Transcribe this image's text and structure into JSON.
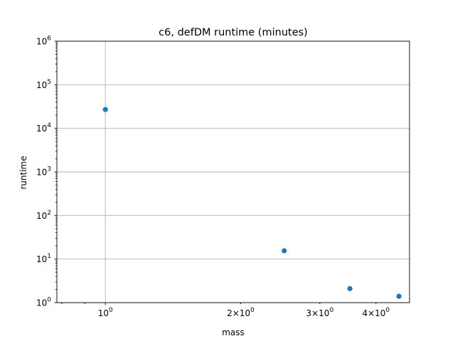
{
  "chart_data": {
    "type": "scatter",
    "title": "c6, defDM runtime (minutes)",
    "xlabel": "mass",
    "ylabel": "runtime",
    "xscale": "log",
    "yscale": "log",
    "xlim": [
      0.78,
      4.75
    ],
    "ylim": [
      1,
      1000000
    ],
    "grid": true,
    "color": "#1f77b4",
    "x": [
      1.0,
      2.5,
      3.5,
      4.5
    ],
    "y": [
      27000,
      15.5,
      2.1,
      1.4
    ],
    "xticks": [
      {
        "value": 1,
        "base": "10",
        "exp": "0"
      },
      {
        "value": 2,
        "base": "2×10",
        "exp": "0"
      },
      {
        "value": 3,
        "base": "3×10",
        "exp": "0"
      },
      {
        "value": 4,
        "base": "4×10",
        "exp": "0"
      }
    ],
    "yticks": [
      {
        "value": 1,
        "base": "10",
        "exp": "0"
      },
      {
        "value": 10,
        "base": "10",
        "exp": "1"
      },
      {
        "value": 100,
        "base": "10",
        "exp": "2"
      },
      {
        "value": 1000,
        "base": "10",
        "exp": "3"
      },
      {
        "value": 10000,
        "base": "10",
        "exp": "4"
      },
      {
        "value": 100000,
        "base": "10",
        "exp": "5"
      },
      {
        "value": 1000000,
        "base": "10",
        "exp": "6"
      }
    ]
  }
}
